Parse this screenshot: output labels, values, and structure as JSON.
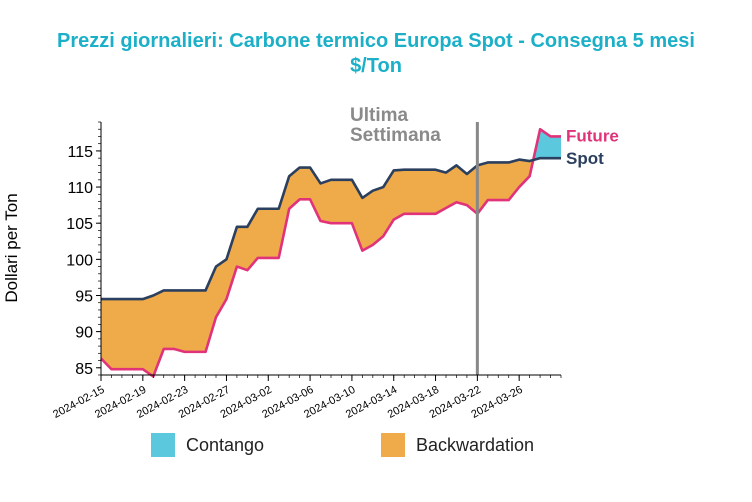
{
  "chart_data": {
    "type": "area",
    "title": "Prezzi giornalieri: Carbone termico Europa Spot - Consegna 5 mesi",
    "subtitle": "$/Ton",
    "ylabel": "Dollari per Ton",
    "xlabel": "",
    "ylim": [
      84,
      119
    ],
    "yticks": [
      85,
      90,
      95,
      100,
      105,
      110,
      115
    ],
    "xlim": [
      "2024-02-15",
      "2024-03-30"
    ],
    "xtick_labels": [
      "2024-02-15",
      "2024-02-19",
      "2024-02-23",
      "2024-02-27",
      "2024-03-02",
      "2024-03-06",
      "2024-03-10",
      "2024-03-14",
      "2024-03-18",
      "2024-03-22",
      "2024-03-26"
    ],
    "dates": [
      "2024-02-15",
      "2024-02-16",
      "2024-02-17",
      "2024-02-18",
      "2024-02-19",
      "2024-02-20",
      "2024-02-21",
      "2024-02-22",
      "2024-02-23",
      "2024-02-24",
      "2024-02-25",
      "2024-02-26",
      "2024-02-27",
      "2024-02-28",
      "2024-02-29",
      "2024-03-01",
      "2024-03-02",
      "2024-03-03",
      "2024-03-04",
      "2024-03-05",
      "2024-03-06",
      "2024-03-07",
      "2024-03-08",
      "2024-03-09",
      "2024-03-10",
      "2024-03-11",
      "2024-03-12",
      "2024-03-13",
      "2024-03-14",
      "2024-03-15",
      "2024-03-16",
      "2024-03-17",
      "2024-03-18",
      "2024-03-19",
      "2024-03-20",
      "2024-03-21",
      "2024-03-22",
      "2024-03-23",
      "2024-03-24",
      "2024-03-25",
      "2024-03-26",
      "2024-03-27",
      "2024-03-28",
      "2024-03-29",
      "2024-03-30"
    ],
    "series": [
      {
        "name": "Spot",
        "color": "#2b3f5e",
        "values": [
          94.5,
          94.5,
          94.5,
          94.5,
          94.5,
          95,
          95.7,
          95.7,
          95.7,
          95.7,
          95.7,
          99,
          100,
          104.5,
          104.5,
          107,
          107,
          107,
          111.5,
          112.7,
          112.7,
          110.5,
          111,
          111,
          111,
          108.5,
          109.5,
          110,
          112.3,
          112.4,
          112.4,
          112.4,
          112.4,
          112,
          113,
          111.8,
          113,
          113.4,
          113.4,
          113.4,
          113.8,
          113.6,
          114,
          114,
          114
        ]
      },
      {
        "name": "Future",
        "color": "#e0337a",
        "values": [
          86.3,
          84.8,
          84.8,
          84.8,
          84.8,
          83.8,
          87.6,
          87.6,
          87.2,
          87.2,
          87.2,
          92,
          94.5,
          99,
          98.5,
          100.2,
          100.2,
          100.2,
          107,
          108.3,
          108.3,
          105.3,
          105,
          105,
          105,
          101.2,
          102,
          103.2,
          105.5,
          106.3,
          106.3,
          106.3,
          106.3,
          107.1,
          107.9,
          107.5,
          106.3,
          108.2,
          108.2,
          108.2,
          110,
          111.5,
          118,
          117,
          117
        ]
      }
    ],
    "vline": {
      "date": "2024-03-22",
      "label_line1": "Ultima",
      "label_line2": "Settimana",
      "color": "#888888"
    },
    "legend": [
      {
        "label": "Contango",
        "color": "#5bc8de"
      },
      {
        "label": "Backwardation",
        "color": "#efab4a"
      }
    ],
    "legend_placement": "bottom",
    "grid": false
  }
}
